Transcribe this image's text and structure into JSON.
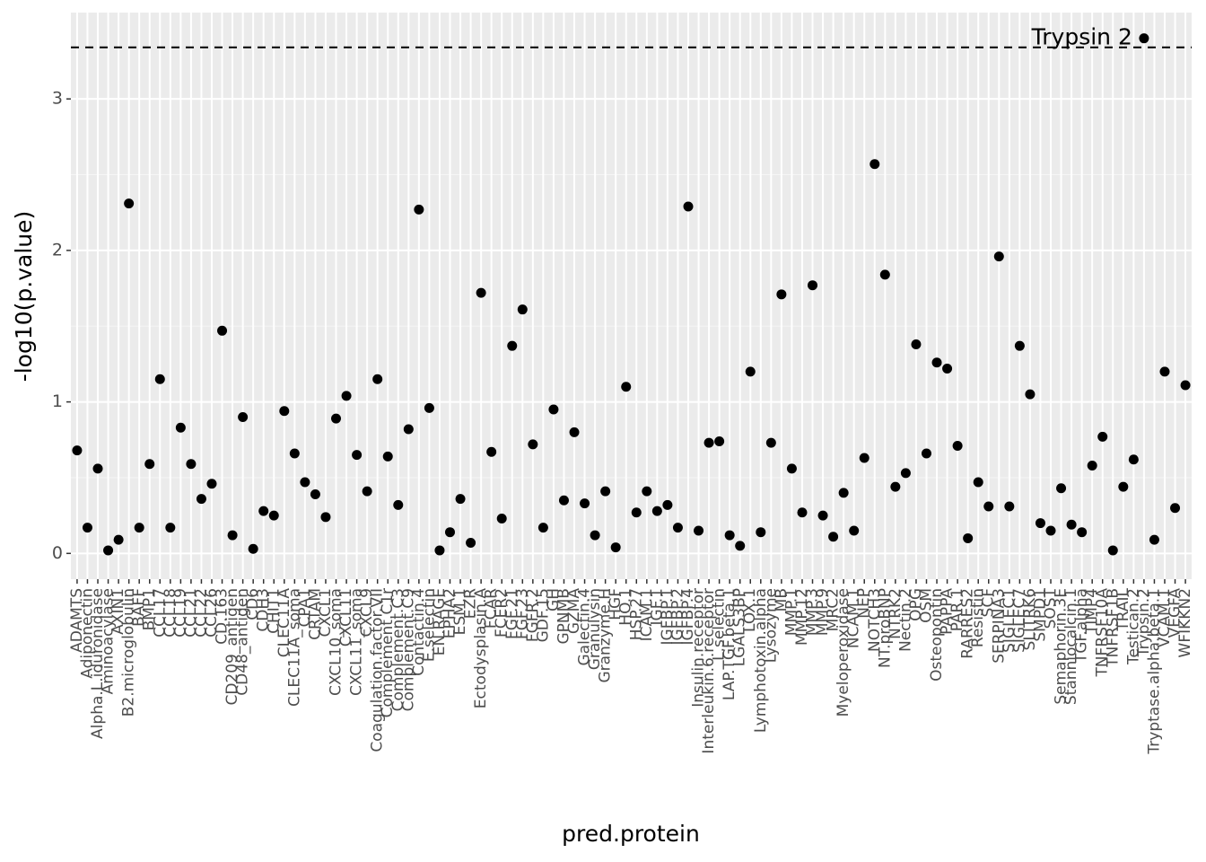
{
  "chart_data": {
    "type": "scatter",
    "x_label": "pred.protein",
    "y_label": "-log10(p.value)",
    "categories": [
      "ADAMTS",
      "Adiponectin",
      "Alpha.L.iduronidase",
      "Aminoacylase",
      "AXIN1",
      "B2.microglobulin",
      "BAFF",
      "BMP1",
      "CCL17",
      "CCL18",
      "CCL19",
      "CCL21",
      "CCL22",
      "CCL26",
      "CD.163",
      "CD209_antigen",
      "CD48_antigen",
      "CD6",
      "CDH3",
      "CHIT1",
      "CLEC11A",
      "CLEC11A_soma",
      "CPA1",
      "CRTAM",
      "CXCL1",
      "CXCL10_soma",
      "CXCL11",
      "CXCL11_soma",
      "CXCL9",
      "Coagulation.factor.VII",
      "Complement.C1r",
      "Complement.C3",
      "Complement.C9",
      "Contactin.4",
      "E.selectin",
      "EN.RAGE",
      "EPHA2",
      "ESM.1",
      "EZR",
      "Ectodysplasin.A",
      "FCAR",
      "FCER2",
      "FGF.21",
      "FGF.23",
      "FGFR.2",
      "GDF.15",
      "GH",
      "GPNMB",
      "GZMA",
      "Galectin.4",
      "Granulysin",
      "Granzyme.H",
      "HGF",
      "HO.1",
      "HSP.27",
      "ICAM.1",
      "IGF.1",
      "IGFBP.1",
      "IGFBP.2",
      "IGFBP.4",
      "Insulin.receptor",
      "Interleukin.6.receptor",
      "L.selectin",
      "LAP.TGF.beta.1",
      "LGALS3BP",
      "LOX.1",
      "Lymphotoxin.alpha",
      "Lysozyme",
      "MB",
      "MMP.1",
      "MMP.12",
      "MMP.3",
      "MMP.9",
      "MRC2",
      "Myeloperoxidase",
      "NCAM.1",
      "NEP",
      "NOTCH3",
      "NT.proBNP",
      "NTRK2",
      "Nectin.2",
      "OPG",
      "OSM",
      "Osteopontin",
      "PAPPA",
      "PAR.1",
      "RARRES2",
      "Resistin",
      "SCF",
      "SERPINA3",
      "SIGLEC1",
      "SIGLEC7",
      "SLITRK6",
      "SMPD1",
      "SOST",
      "Semaphorin.3E",
      "Stanniocalcin.1",
      "TGF.alpha",
      "TIMP4",
      "TNFRSF10A",
      "TNFRSF1B",
      "TRAIL",
      "Testican.2",
      "Trypsin.2",
      "Tryptase.alpha.beta.1",
      "VCAM.1",
      "VEGFA",
      "WFIKKN2"
    ],
    "values": [
      0.68,
      0.17,
      0.56,
      0.02,
      0.09,
      2.31,
      0.17,
      0.59,
      1.15,
      0.17,
      0.83,
      0.59,
      0.36,
      0.46,
      1.47,
      0.12,
      0.9,
      0.03,
      0.28,
      0.25,
      0.94,
      0.66,
      0.47,
      0.39,
      0.24,
      0.89,
      1.04,
      0.65,
      0.41,
      1.15,
      0.64,
      0.32,
      0.82,
      2.27,
      0.96,
      0.02,
      0.14,
      0.36,
      0.07,
      1.72,
      0.67,
      0.23,
      1.37,
      1.61,
      0.72,
      0.17,
      0.95,
      0.35,
      0.8,
      0.33,
      0.12,
      0.41,
      0.04,
      1.1,
      0.27,
      0.41,
      0.28,
      0.32,
      0.17,
      2.29,
      0.15,
      0.73,
      0.74,
      0.12,
      0.05,
      1.2,
      0.14,
      0.73,
      1.71,
      0.56,
      0.27,
      1.77,
      0.25,
      0.11,
      0.4,
      0.15,
      0.63,
      2.57,
      1.84,
      0.44,
      0.53,
      1.38,
      0.66,
      1.26,
      1.22,
      0.71,
      0.1,
      0.47,
      0.31,
      1.96,
      0.31,
      1.37,
      1.05,
      0.2,
      0.15,
      0.43,
      0.19,
      0.14,
      0.58,
      0.77,
      0.02,
      0.44,
      0.62,
      3.4,
      0.09,
      1.2,
      0.3,
      1.11
    ],
    "color": "#000000",
    "ylim": [
      -0.17,
      3.57
    ],
    "yticks": [
      0,
      1,
      2,
      3
    ],
    "grid": true,
    "hline": {
      "y": 3.34,
      "linetype": "dashed"
    },
    "annotations": [
      {
        "text": "Trypsin 2",
        "x": "Trypsin.2",
        "y": 3.4
      }
    ]
  }
}
